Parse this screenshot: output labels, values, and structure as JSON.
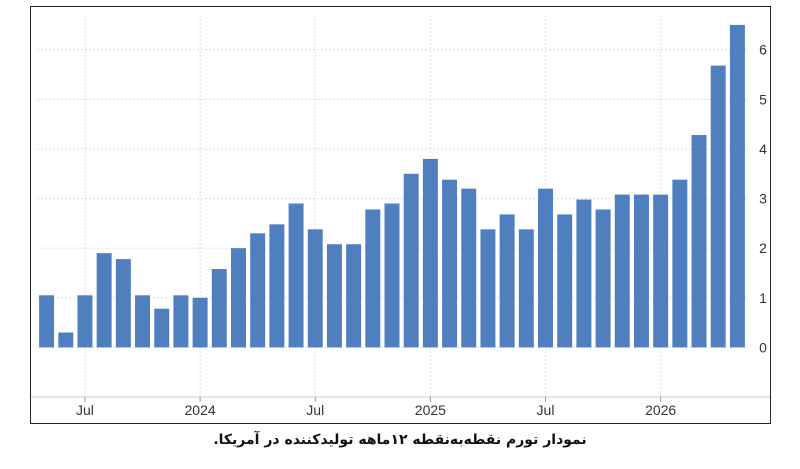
{
  "caption": "نمودار تورم نقطه‌به‌نقطه ۱۲ماهه تولیدکننده در آمریکا.",
  "chart_data": {
    "type": "bar",
    "title": "",
    "xlabel": "",
    "ylabel": "",
    "ylim": [
      -1,
      6.7
    ],
    "yticks": [
      0,
      1,
      2,
      3,
      4,
      5,
      6
    ],
    "ytick_side": "right",
    "grid": true,
    "bar_color": "#4f7fbf",
    "x_tick_labels": [
      {
        "label": "Jul",
        "index": 2
      },
      {
        "label": "2024",
        "index": 8
      },
      {
        "label": "Jul",
        "index": 14
      },
      {
        "label": "2025",
        "index": 20
      },
      {
        "label": "Jul",
        "index": 26
      },
      {
        "label": "2026",
        "index": 32
      }
    ],
    "values": [
      1.05,
      0.3,
      1.05,
      1.9,
      1.78,
      1.05,
      0.78,
      1.05,
      1.0,
      1.58,
      2.0,
      2.3,
      2.48,
      2.9,
      2.38,
      2.08,
      2.08,
      2.78,
      2.9,
      3.5,
      3.8,
      3.38,
      3.2,
      2.38,
      2.68,
      2.38,
      3.2,
      2.68,
      2.98,
      2.78,
      3.08,
      3.08,
      3.08,
      3.38,
      4.28,
      5.68,
      6.5
    ]
  }
}
